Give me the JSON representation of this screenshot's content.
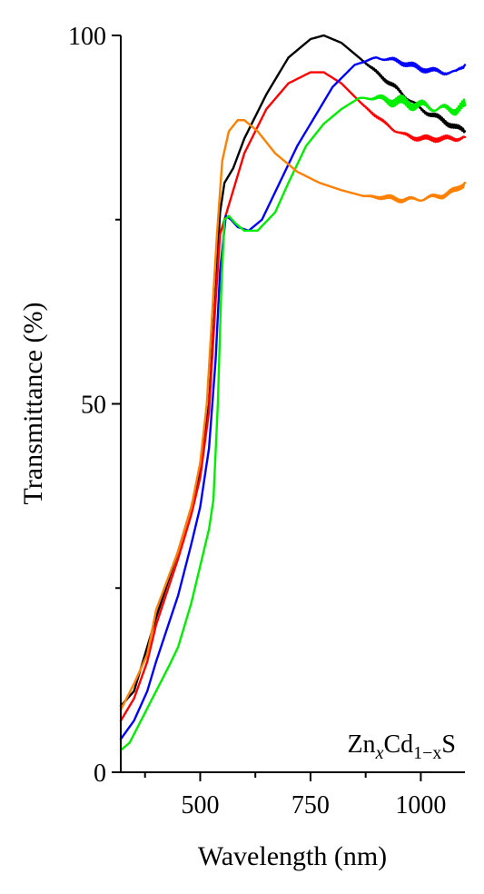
{
  "chart_data": {
    "type": "line",
    "xlabel": "Wavelength (nm)",
    "ylabel": "Transmittance (%)",
    "annotation": {
      "base": "Zn",
      "sub1": "x",
      "mid": "Cd",
      "sub2": "1−x",
      "end": "S"
    },
    "xlim": [
      320,
      1100
    ],
    "ylim": [
      0,
      100
    ],
    "x_ticks": [
      500,
      750,
      1000
    ],
    "x_minor_ticks": [
      375,
      625,
      875
    ],
    "y_ticks": [
      0,
      50,
      100
    ],
    "y_minor_ticks": [
      25,
      75
    ],
    "grid": false,
    "legend": "none",
    "series": [
      {
        "color": "#000000",
        "points": [
          [
            320,
            9
          ],
          [
            350,
            11
          ],
          [
            380,
            17
          ],
          [
            400,
            21
          ],
          [
            450,
            30
          ],
          [
            480,
            36
          ],
          [
            500,
            41
          ],
          [
            520,
            50
          ],
          [
            535,
            65
          ],
          [
            545,
            76
          ],
          [
            555,
            80
          ],
          [
            575,
            82
          ],
          [
            600,
            86
          ],
          [
            650,
            92
          ],
          [
            700,
            97
          ],
          [
            750,
            99.5
          ],
          [
            780,
            100
          ],
          [
            820,
            99
          ],
          [
            870,
            96.5
          ],
          [
            920,
            94
          ],
          [
            960,
            92
          ],
          [
            1000,
            90
          ],
          [
            1050,
            88.5
          ],
          [
            1080,
            87.5
          ],
          [
            1100,
            87
          ]
        ]
      },
      {
        "color": "#ff0000",
        "points": [
          [
            320,
            7
          ],
          [
            350,
            10
          ],
          [
            380,
            15
          ],
          [
            400,
            20
          ],
          [
            450,
            29
          ],
          [
            480,
            35
          ],
          [
            500,
            40
          ],
          [
            520,
            49
          ],
          [
            535,
            64
          ],
          [
            545,
            73
          ],
          [
            555,
            75
          ],
          [
            575,
            79
          ],
          [
            600,
            84
          ],
          [
            650,
            90
          ],
          [
            700,
            93.5
          ],
          [
            750,
            95
          ],
          [
            780,
            95
          ],
          [
            820,
            93.5
          ],
          [
            870,
            90.5
          ],
          [
            920,
            88
          ],
          [
            960,
            86.5
          ],
          [
            1000,
            86
          ],
          [
            1050,
            86
          ],
          [
            1080,
            86
          ],
          [
            1100,
            86.2
          ]
        ]
      },
      {
        "color": "#0000ff",
        "points": [
          [
            320,
            4.5
          ],
          [
            350,
            7
          ],
          [
            380,
            11
          ],
          [
            400,
            15
          ],
          [
            450,
            24
          ],
          [
            480,
            31
          ],
          [
            500,
            36
          ],
          [
            520,
            44
          ],
          [
            535,
            56
          ],
          [
            545,
            68
          ],
          [
            558,
            75.5
          ],
          [
            570,
            75
          ],
          [
            585,
            74
          ],
          [
            610,
            73.5
          ],
          [
            640,
            75
          ],
          [
            680,
            80
          ],
          [
            720,
            85
          ],
          [
            760,
            89
          ],
          [
            800,
            93
          ],
          [
            850,
            96
          ],
          [
            900,
            97
          ],
          [
            950,
            96.5
          ],
          [
            1000,
            95.5
          ],
          [
            1050,
            95
          ],
          [
            1080,
            95
          ],
          [
            1100,
            96
          ]
        ]
      },
      {
        "color": "#00ee00",
        "points": [
          [
            320,
            3
          ],
          [
            340,
            4
          ],
          [
            370,
            7.5
          ],
          [
            400,
            11
          ],
          [
            430,
            14.5
          ],
          [
            450,
            17
          ],
          [
            480,
            23
          ],
          [
            500,
            28
          ],
          [
            520,
            33
          ],
          [
            530,
            37
          ],
          [
            540,
            50
          ],
          [
            548,
            66
          ],
          [
            555,
            75
          ],
          [
            565,
            75.5
          ],
          [
            580,
            74.5
          ],
          [
            600,
            73.5
          ],
          [
            630,
            73.5
          ],
          [
            670,
            76
          ],
          [
            700,
            80
          ],
          [
            740,
            85
          ],
          [
            780,
            88
          ],
          [
            820,
            90
          ],
          [
            860,
            91.5
          ],
          [
            900,
            91.5
          ],
          [
            950,
            91
          ],
          [
            1000,
            90.5
          ],
          [
            1050,
            90
          ],
          [
            1080,
            90
          ],
          [
            1100,
            90.5
          ]
        ]
      },
      {
        "color": "#ff8000",
        "points": [
          [
            320,
            8.5
          ],
          [
            350,
            12
          ],
          [
            380,
            16
          ],
          [
            400,
            22
          ],
          [
            450,
            30
          ],
          [
            480,
            36
          ],
          [
            500,
            42
          ],
          [
            515,
            50
          ],
          [
            528,
            63
          ],
          [
            538,
            73
          ],
          [
            550,
            83
          ],
          [
            565,
            87
          ],
          [
            585,
            88.5
          ],
          [
            600,
            88.5
          ],
          [
            630,
            87
          ],
          [
            670,
            84
          ],
          [
            720,
            81.5
          ],
          [
            770,
            80
          ],
          [
            820,
            79
          ],
          [
            870,
            78.2
          ],
          [
            920,
            78
          ],
          [
            960,
            77.7
          ],
          [
            1000,
            77.8
          ],
          [
            1050,
            78.3
          ],
          [
            1080,
            79
          ],
          [
            1100,
            80
          ]
        ]
      }
    ]
  }
}
